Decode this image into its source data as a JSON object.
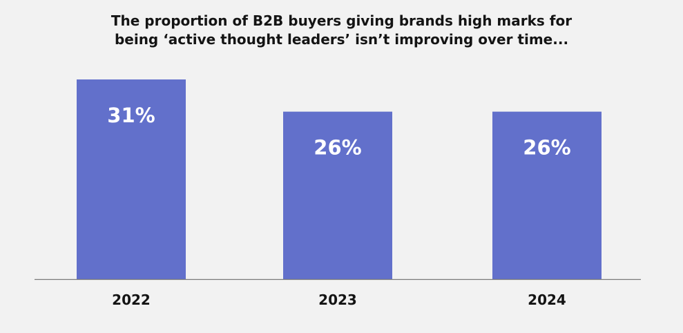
{
  "chart_data": {
    "type": "bar",
    "title_lines": [
      "The proportion of B2B buyers giving brands high marks for",
      "being ‘active thought leaders’ isn’t improving over time..."
    ],
    "categories": [
      "2022",
      "2023",
      "2024"
    ],
    "values": [
      31,
      26,
      26
    ],
    "data_labels": [
      "31%",
      "26%",
      "26%"
    ],
    "xlabel": "",
    "ylabel": "",
    "ylim": [
      0,
      31
    ],
    "grid": false,
    "legend": "none",
    "colors": {
      "bar": "#6270cb",
      "baseline": "#7a7a7a",
      "value_text": "#ffffff",
      "label_text": "#141414"
    }
  }
}
